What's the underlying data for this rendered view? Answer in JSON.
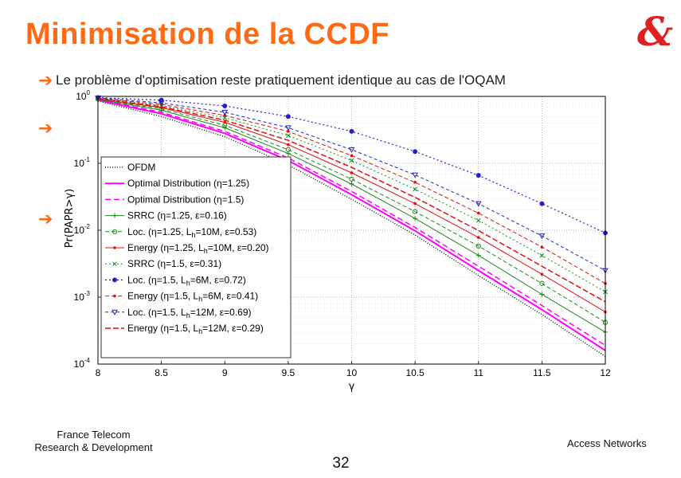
{
  "slide": {
    "title": "Minimisation de la CCDF",
    "logo": "&",
    "bullet_text": "Le problème d'optimisation reste pratiquement identique au cas de l'OQAM",
    "footer_left": [
      "France Telecom",
      "Research & Development"
    ],
    "footer_right": "Access Networks",
    "page_number": "32",
    "accent_color": "#ff6a13",
    "bullet_icon": "arrow-right-icon"
  },
  "chart_data": {
    "type": "line",
    "title": "",
    "xlabel": "γ",
    "ylabel": "Pr(PAPR>γ)",
    "xlim": [
      8,
      12
    ],
    "ylim": [
      0.0001,
      1
    ],
    "yscale": "log",
    "grid": true,
    "legend_position": "left-inside",
    "x_ticks": [
      "8",
      "8.5",
      "9",
      "9.5",
      "10",
      "10.5",
      "11",
      "11.5",
      "12"
    ],
    "y_ticks": [
      {
        "base": "10",
        "exp": "0"
      },
      {
        "base": "10",
        "exp": "-1"
      },
      {
        "base": "10",
        "exp": "-2"
      },
      {
        "base": "10",
        "exp": "-3"
      },
      {
        "base": "10",
        "exp": "-4"
      }
    ],
    "x": [
      8,
      8.5,
      9,
      9.5,
      10,
      10.5,
      11,
      11.5,
      12
    ],
    "series": [
      {
        "name": "OFDM",
        "color": "#000000",
        "dash": "1,2",
        "marker": "none",
        "width": 1.3,
        "values": [
          0.85,
          0.5,
          0.25,
          0.095,
          0.029,
          0.0085,
          0.0021,
          0.00055,
          0.00013
        ]
      },
      {
        "name": "Optimal Distribution (η=1.25)",
        "color": "#ff00ff",
        "dash": "",
        "marker": "none",
        "width": 2,
        "values": [
          0.88,
          0.55,
          0.28,
          0.11,
          0.034,
          0.0098,
          0.0025,
          0.00065,
          0.00016
        ]
      },
      {
        "name": "Optimal Distribution (η=1.5)",
        "color": "#ff00ff",
        "dash": "7,4",
        "marker": "none",
        "width": 1.5,
        "values": [
          0.89,
          0.58,
          0.3,
          0.12,
          0.038,
          0.011,
          0.0029,
          0.00075,
          0.00019
        ]
      },
      {
        "name": "SRRC (η=1.25, ε=0.16)",
        "color": "#1a8a1a",
        "dash": "",
        "marker": "plus",
        "width": 1,
        "values": [
          0.9,
          0.62,
          0.34,
          0.14,
          0.049,
          0.015,
          0.0042,
          0.0011,
          0.0003
        ]
      },
      {
        "name": "Loc. (η=1.25, Lh=10M, ε=0.53)",
        "color": "#1a8a1a",
        "dash": "5,3",
        "marker": "circle",
        "width": 1,
        "values": [
          0.91,
          0.65,
          0.37,
          0.16,
          0.058,
          0.019,
          0.0058,
          0.0016,
          0.00042
        ]
      },
      {
        "name": "Energy (η=1.25, Lh=10M, ε=0.20)",
        "color": "#dd1111",
        "dash": "",
        "marker": "dot",
        "width": 1,
        "values": [
          0.92,
          0.68,
          0.41,
          0.19,
          0.072,
          0.025,
          0.0078,
          0.0022,
          0.0006
        ]
      },
      {
        "name": "SRRC (η=1.5, ε=0.31)",
        "color": "#1a8a1a",
        "dash": "2,3",
        "marker": "x",
        "width": 1,
        "values": [
          0.93,
          0.73,
          0.48,
          0.26,
          0.11,
          0.041,
          0.014,
          0.0042,
          0.0012
        ]
      },
      {
        "name": "Loc. (η=1.5, Lh=6M, ε=0.72)",
        "color": "#2222cc",
        "dash": "2,3",
        "marker": "filled-circle",
        "width": 1.2,
        "values": [
          0.96,
          0.88,
          0.72,
          0.5,
          0.3,
          0.15,
          0.066,
          0.025,
          0.0091
        ]
      },
      {
        "name": "Energy (η=1.5, Lh=6M, ε=0.41)",
        "color": "#dd1111",
        "dash": "5,3",
        "marker": "dot",
        "width": 1,
        "values": [
          0.94,
          0.76,
          0.52,
          0.3,
          0.13,
          0.052,
          0.018,
          0.0056,
          0.0016
        ]
      },
      {
        "name": "Loc. (η=1.5, Lh=12M, ε=0.69)",
        "color": "#2222cc",
        "dash": "4,3",
        "marker": "triangle-down",
        "width": 1,
        "values": [
          0.95,
          0.8,
          0.58,
          0.34,
          0.16,
          0.067,
          0.025,
          0.0082,
          0.0025
        ]
      },
      {
        "name": "Energy (η=1.5, Lh=12M, ε=0.29)",
        "color": "#dd1111",
        "dash": "7,3",
        "marker": "none",
        "width": 1.5,
        "values": [
          0.92,
          0.7,
          0.44,
          0.22,
          0.087,
          0.031,
          0.0099,
          0.0029,
          0.00085
        ]
      }
    ],
    "legend_labels": [
      {
        "parts": [
          "OFDM"
        ]
      },
      {
        "parts": [
          "Optimal Distribution (",
          "η",
          "=1.25)"
        ]
      },
      {
        "parts": [
          "Optimal Distribution (",
          "η",
          "=1.5)"
        ]
      },
      {
        "parts": [
          "SRRC (",
          "η",
          "=1.25, ",
          "ε",
          "=0.16)"
        ]
      },
      {
        "parts": [
          "Loc. (",
          "η",
          "=1.25, L",
          "h",
          "=10M, ",
          "ε",
          "=0.53)"
        ]
      },
      {
        "parts": [
          "Energy (",
          "η",
          "=1.25, L",
          "h",
          "=10M, ",
          "ε",
          "=0.20)"
        ]
      },
      {
        "parts": [
          "SRRC (",
          "η",
          "=1.5, ",
          "ε",
          "=0.31)"
        ]
      },
      {
        "parts": [
          "Loc. (",
          "η",
          "=1.5, L",
          "h",
          "=6M, ",
          "ε",
          "=0.72)"
        ]
      },
      {
        "parts": [
          "Energy (",
          "η",
          "=1.5, L",
          "h",
          "=6M, ",
          "ε",
          "=0.41)"
        ]
      },
      {
        "parts": [
          "Loc. (",
          "η",
          "=1.5, L",
          "h",
          "=12M, ",
          "ε",
          "=0.69)"
        ]
      },
      {
        "parts": [
          "Energy (",
          "η",
          "=1.5, L",
          "h",
          "=12M, ",
          "ε",
          "=0.29)"
        ]
      }
    ]
  }
}
